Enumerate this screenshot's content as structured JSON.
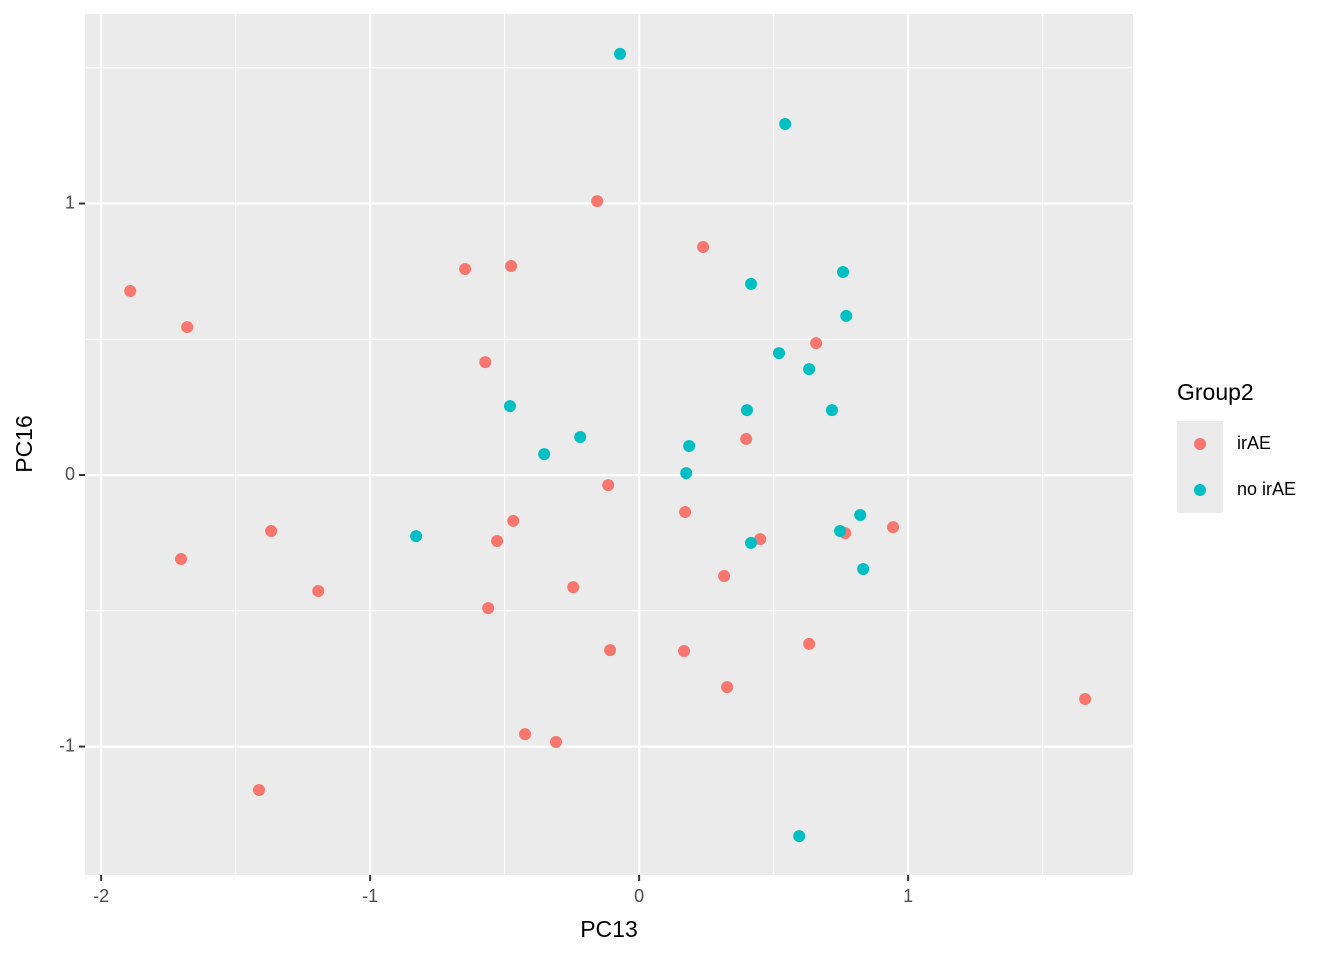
{
  "chart_data": {
    "type": "scatter",
    "x_label": "PC13",
    "y_label": "PC16",
    "legend_title": "Group2",
    "legend_position": "right",
    "xlim": [
      -2.06,
      1.836
    ],
    "ylim": [
      -1.473,
      1.698
    ],
    "xticks": [
      -2,
      -1,
      0,
      1
    ],
    "yticks": [
      -1,
      0,
      1
    ],
    "x_minor_ticks": [
      -1.5,
      -0.5,
      0.5,
      1.5
    ],
    "y_minor_ticks": [
      -0.5,
      0.5,
      1.5
    ],
    "grid": true,
    "series": [
      {
        "name": "irAE",
        "color": "#F8766D",
        "x": [
          -1.892,
          -1.68,
          -0.647,
          -0.476,
          -0.156,
          0.238,
          -0.572,
          0.658,
          0.398,
          -0.115,
          0.171,
          -0.468,
          -0.528,
          -1.368,
          -1.703,
          -1.193,
          -0.245,
          -0.561,
          0.316,
          0.45,
          0.766,
          0.944,
          -0.108,
          0.167,
          0.632,
          0.327,
          1.658,
          -0.424,
          -0.309,
          -1.413
        ],
        "values": [
          0.678,
          0.545,
          0.759,
          0.77,
          1.009,
          0.84,
          0.416,
          0.486,
          0.133,
          -0.037,
          -0.136,
          -0.169,
          -0.243,
          -0.206,
          -0.309,
          -0.427,
          -0.413,
          -0.49,
          -0.372,
          -0.236,
          -0.214,
          -0.192,
          -0.645,
          -0.648,
          -0.622,
          -0.781,
          -0.825,
          -0.954,
          -0.983,
          -1.16
        ]
      },
      {
        "name": "no irAE",
        "color": "#00BFC4",
        "x": [
          -0.071,
          0.543,
          0.416,
          0.758,
          0.77,
          0.52,
          0.632,
          0.401,
          0.717,
          -0.48,
          -0.219,
          -0.353,
          0.186,
          0.175,
          -0.829,
          0.416,
          0.747,
          0.822,
          0.833,
          0.595
        ],
        "values": [
          1.551,
          1.293,
          0.704,
          0.748,
          0.586,
          0.449,
          0.39,
          0.239,
          0.239,
          0.254,
          0.14,
          0.077,
          0.107,
          0.007,
          -0.225,
          -0.25,
          -0.206,
          -0.147,
          -0.346,
          -1.33
        ]
      }
    ]
  }
}
